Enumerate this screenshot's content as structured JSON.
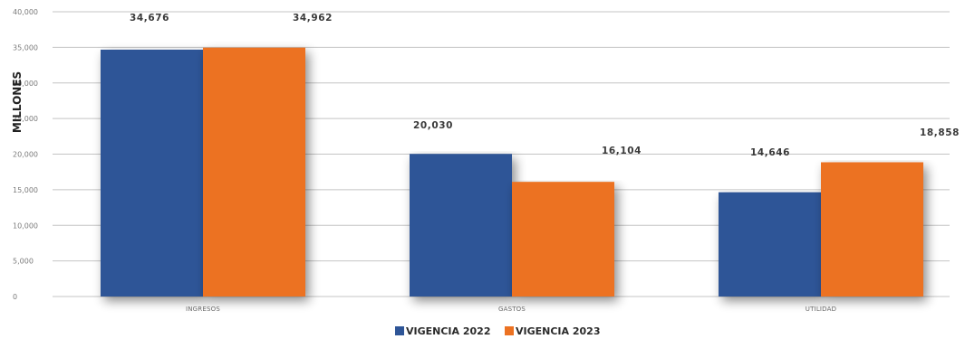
{
  "chart_data": {
    "type": "bar",
    "categories": [
      "INGRESOS",
      "GASTOS",
      "UTILIDAD"
    ],
    "series": [
      {
        "name": "VIGENCIA 2022",
        "values": [
          34676,
          20030,
          14646
        ],
        "color": "#2e5597",
        "labels": [
          "34,676",
          "20,030",
          "14,646"
        ]
      },
      {
        "name": "VIGENCIA 2023",
        "values": [
          34962,
          16104,
          18858
        ],
        "color": "#ec7222",
        "labels": [
          "34,962",
          "16,104",
          "18,858"
        ]
      }
    ],
    "title": "",
    "xlabel": "",
    "ylabel": "MILLONES",
    "ylim": [
      0,
      40000
    ],
    "yticks": [
      0,
      5000,
      10000,
      15000,
      20000,
      25000,
      30000,
      35000,
      40000
    ],
    "ytick_labels": [
      "0",
      "5,000",
      "10,000",
      "15,000",
      "20,000",
      "25,000",
      "30,000",
      "35,000",
      "40,000"
    ],
    "grid": true,
    "legend_position": "bottom-center"
  }
}
